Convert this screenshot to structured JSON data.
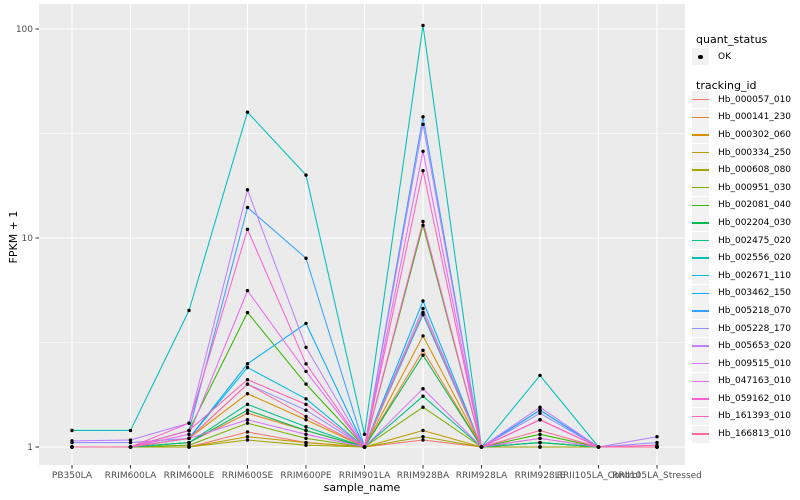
{
  "legend": {
    "quant_title": "quant_status",
    "quant_items": [
      {
        "label": "OK",
        "symbol": "black-point"
      }
    ],
    "tracking_title": "tracking_id"
  },
  "panel": {
    "background": "#EBEBEB",
    "gridline_color": "#FFFFFF",
    "tick_color": "#333333",
    "axis_text_color": "#4D4D4D"
  },
  "chart_data": {
    "type": "line",
    "title": "",
    "x_axis_label": "sample_name",
    "y_axis_label": "FPKM + 1",
    "y_scale": "log10",
    "y_ticks": [
      1,
      10,
      100
    ],
    "y_minor_ticks": [
      3.1623,
      31.623
    ],
    "ylim": [
      1,
      110
    ],
    "grid": "on",
    "legend_position": "right",
    "point_marker": "black dot at every vertex (quant_status = OK)",
    "categories": [
      "PB350LA",
      "RRIM600LA",
      "RRIM600LE",
      "RRIM600SE",
      "RRIM600PE",
      "RRIM901LA",
      "RRIM928BA",
      "RRIM928LA",
      "RRIM928LE",
      "RRII105LA_Control",
      "RRII105LA_Stressed"
    ],
    "series": [
      {
        "name": "Hb_000057_010",
        "color": "#F8766D",
        "values": [
          1,
          1,
          1,
          1.18,
          1.05,
          1,
          1.08,
          1,
          1,
          1,
          1
        ]
      },
      {
        "name": "Hb_000141_230",
        "color": "#EA8331",
        "values": [
          1,
          1,
          1.05,
          1.45,
          1.2,
          1,
          2.9,
          1,
          1.05,
          1,
          1
        ]
      },
      {
        "name": "Hb_000302_060",
        "color": "#D89000",
        "values": [
          1,
          1,
          1.1,
          1.8,
          1.35,
          1,
          3.4,
          1,
          1.1,
          1,
          1
        ]
      },
      {
        "name": "Hb_000334_250",
        "color": "#C09B00",
        "values": [
          1,
          1,
          1,
          1.12,
          1.05,
          1,
          1.2,
          1,
          1,
          1,
          1
        ]
      },
      {
        "name": "Hb_000608_080",
        "color": "#A3A500",
        "values": [
          1,
          1,
          1,
          1.08,
          1.02,
          1,
          1.12,
          1,
          1,
          1,
          1
        ]
      },
      {
        "name": "Hb_000951_030",
        "color": "#7CAE00",
        "values": [
          1,
          1,
          1.02,
          1.3,
          1.1,
          1,
          1.55,
          1,
          1.05,
          1,
          1
        ]
      },
      {
        "name": "Hb_002081_040",
        "color": "#39B600",
        "values": [
          1,
          1,
          1.2,
          4.4,
          2.0,
          1,
          11.5,
          1,
          1.15,
          1,
          1
        ]
      },
      {
        "name": "Hb_002204_030",
        "color": "#00BB4E",
        "values": [
          1,
          1,
          1.05,
          1.5,
          1.2,
          1,
          2.75,
          1,
          1.05,
          1,
          1
        ]
      },
      {
        "name": "Hb_002475_020",
        "color": "#00C087",
        "values": [
          1,
          1,
          1.05,
          1.6,
          1.25,
          1,
          1.75,
          1,
          1.05,
          1,
          1
        ]
      },
      {
        "name": "Hb_002556_020",
        "color": "#00C0B8",
        "values": [
          1.2,
          1.2,
          4.5,
          40,
          20,
          1.15,
          104,
          1,
          2.2,
          1,
          1
        ]
      },
      {
        "name": "Hb_002671_110",
        "color": "#00BAE0",
        "values": [
          1,
          1,
          1.1,
          2.4,
          1.7,
          1,
          4.3,
          1,
          1.5,
          1,
          1
        ]
      },
      {
        "name": "Hb_003462_150",
        "color": "#00ACFC",
        "values": [
          1,
          1,
          1.1,
          2.5,
          3.9,
          1,
          5.0,
          1,
          1.5,
          1,
          1
        ]
      },
      {
        "name": "Hb_005218_070",
        "color": "#35A2FF",
        "values": [
          1,
          1,
          1.2,
          14,
          8,
          1,
          38,
          1,
          1.5,
          1,
          1
        ]
      },
      {
        "name": "Hb_005228_170",
        "color": "#9590FF",
        "values": [
          1.05,
          1.05,
          1.1,
          2.0,
          1.5,
          1,
          4.6,
          1,
          1.45,
          1,
          1.05
        ]
      },
      {
        "name": "Hb_005653_020",
        "color": "#BF80FF",
        "values": [
          1.07,
          1.08,
          1.3,
          17,
          3.0,
          1,
          35,
          1,
          1.55,
          1,
          1.12
        ]
      },
      {
        "name": "Hb_009515_010",
        "color": "#DB72FB",
        "values": [
          1,
          1,
          1.1,
          1.35,
          1.15,
          1,
          1.9,
          1,
          1.1,
          1,
          1
        ]
      },
      {
        "name": "Hb_047163_010",
        "color": "#E76BF3",
        "values": [
          1,
          1,
          1.15,
          5.6,
          2.3,
          1,
          26,
          1,
          1.35,
          1,
          1
        ]
      },
      {
        "name": "Hb_059162_010",
        "color": "#FD61D1",
        "values": [
          1,
          1,
          1.3,
          11,
          2.5,
          1,
          12,
          1,
          1.35,
          1,
          1
        ]
      },
      {
        "name": "Hb_161393_010",
        "color": "#FF62BC",
        "values": [
          1,
          1,
          1.2,
          2.1,
          1.6,
          1,
          21,
          1,
          1.35,
          1,
          1.02
        ]
      },
      {
        "name": "Hb_166813_010",
        "color": "#FF6A98",
        "values": [
          1,
          1,
          1.1,
          2.0,
          1.4,
          1,
          4.4,
          1,
          1.2,
          1,
          1
        ]
      }
    ]
  }
}
